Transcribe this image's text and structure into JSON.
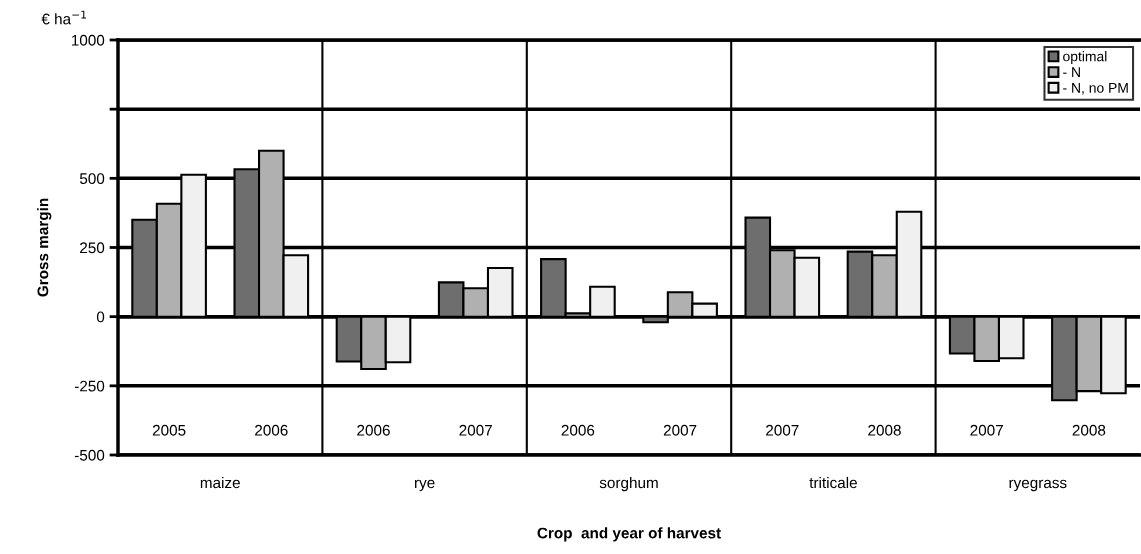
{
  "chart_data": {
    "type": "bar",
    "ylabel": "Gross margin",
    "xlabel": "Crop  and year of harvest",
    "categories": [
      "2005",
      "2006",
      "2006",
      "2007",
      "2006",
      "2007",
      "2007",
      "2008",
      "2007",
      "2008"
    ],
    "series": [
      {
        "name": "optimal",
        "color": "#6e6e6e",
        "values": [
          350,
          533,
          -162,
          124,
          208,
          -20,
          358,
          235,
          -133,
          -302
        ]
      },
      {
        "name": "- N",
        "color": "#b0b0b0",
        "values": [
          408,
          600,
          -189,
          103,
          12,
          88,
          240,
          222,
          -160,
          -269
        ]
      },
      {
        "name": "- N, no PM",
        "color": "#f0f0f0",
        "values": [
          513,
          222,
          -165,
          176,
          108,
          47,
          213,
          379,
          -150,
          -277
        ]
      }
    ],
    "annotations": [
      "maize",
      "rye",
      "sorghum",
      "triticale",
      "ryegrass",
      "€ ha$^{−1}$"
    ],
    "ylim": [
      -500,
      1000
    ],
    "yticks": [
      -500,
      -250,
      0,
      250,
      500,
      {
        "value": 750,
        "label": null
      },
      1000
    ],
    "grid": "y",
    "legend": "top right"
  }
}
